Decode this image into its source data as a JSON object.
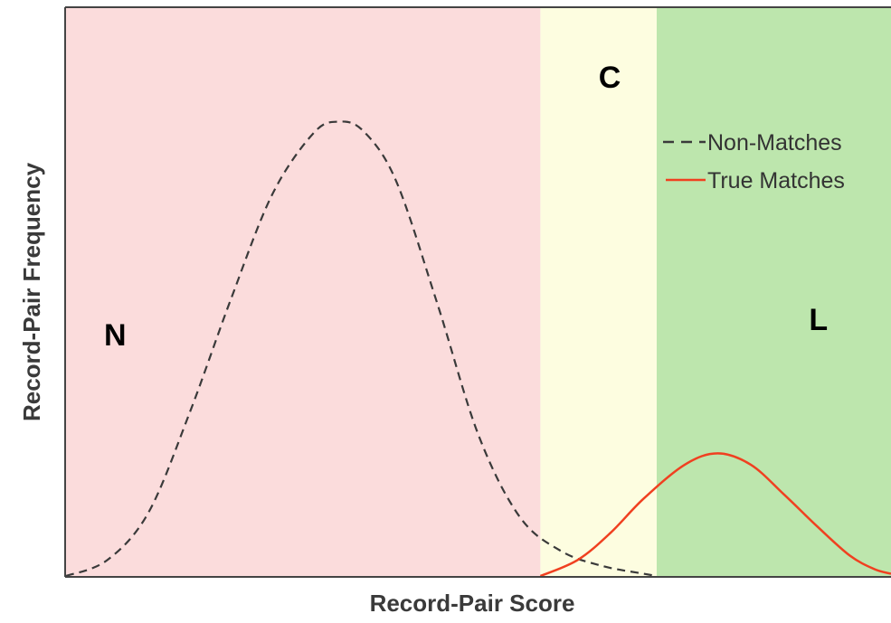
{
  "chart_data": {
    "type": "line",
    "title": "",
    "xlabel": "Record-Pair Score",
    "ylabel": "Record-Pair Frequency",
    "x_ticks_shown": false,
    "y_ticks_shown": false,
    "regions": [
      {
        "label": "N",
        "x_start": 0,
        "x_end": 0.575,
        "color": "#fbdcdc"
      },
      {
        "label": "C",
        "x_start": 0.575,
        "x_end": 0.716,
        "color": "#fdfde0"
      },
      {
        "label": "L",
        "x_start": 0.716,
        "x_end": 1.0,
        "color": "#bde6ad"
      }
    ],
    "series": [
      {
        "name": "Non-Matches",
        "style": "dashed",
        "color": "#3a3a3a",
        "x": [
          0.0,
          0.05,
          0.1,
          0.15,
          0.2,
          0.25,
          0.3,
          0.33,
          0.36,
          0.4,
          0.45,
          0.5,
          0.55,
          0.6,
          0.65,
          0.7,
          0.716
        ],
        "values": [
          0.0,
          0.035,
          0.14,
          0.36,
          0.61,
          0.84,
          0.975,
          1.0,
          0.98,
          0.87,
          0.6,
          0.31,
          0.13,
          0.055,
          0.022,
          0.005,
          0.0
        ]
      },
      {
        "name": "True Matches",
        "style": "solid",
        "color": "#f04020",
        "x": [
          0.575,
          0.62,
          0.66,
          0.7,
          0.75,
          0.79,
          0.83,
          0.87,
          0.91,
          0.95,
          0.98,
          1.0
        ],
        "values": [
          0.0,
          0.035,
          0.095,
          0.17,
          0.245,
          0.27,
          0.245,
          0.18,
          0.11,
          0.045,
          0.015,
          0.005
        ]
      }
    ],
    "xlim": [
      0,
      1
    ],
    "ylim": [
      0,
      1.25
    ],
    "legend_position": "top-right",
    "grid": false
  }
}
